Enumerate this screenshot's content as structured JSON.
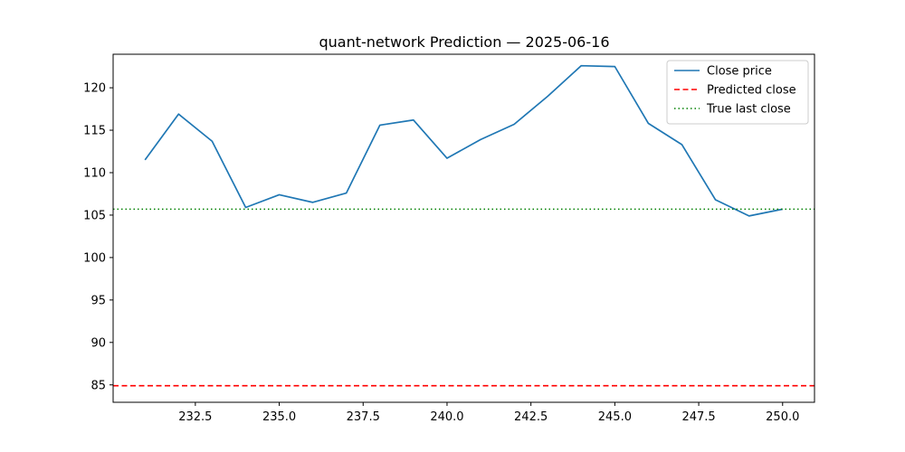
{
  "chart_data": {
    "type": "line",
    "title": "quant-network Prediction — 2025-06-16",
    "xlabel": "",
    "ylabel": "",
    "xlim": [
      230.05,
      250.95
    ],
    "ylim": [
      82.95,
      123.95
    ],
    "x_ticks": [
      232.5,
      235.0,
      237.5,
      240.0,
      242.5,
      245.0,
      247.5,
      250.0
    ],
    "x_tick_labels": [
      "232.5",
      "235.0",
      "237.5",
      "240.0",
      "242.5",
      "245.0",
      "247.5",
      "250.0"
    ],
    "y_ticks": [
      85,
      90,
      95,
      100,
      105,
      110,
      115,
      120
    ],
    "y_tick_labels": [
      "85",
      "90",
      "95",
      "100",
      "105",
      "110",
      "115",
      "120"
    ],
    "grid": false,
    "legend_position": "top-right",
    "series": [
      {
        "name": "Close price",
        "style": "solid",
        "color": "#1f77b4",
        "x": [
          231,
          232,
          233,
          234,
          235,
          236,
          237,
          238,
          239,
          240,
          241,
          242,
          243,
          244,
          245,
          246,
          247,
          248,
          249,
          250
        ],
        "y": [
          111.5,
          116.9,
          113.7,
          105.9,
          107.4,
          106.5,
          107.6,
          115.6,
          116.2,
          111.7,
          113.9,
          115.7,
          119.0,
          122.6,
          122.5,
          115.8,
          113.3,
          106.8,
          104.9,
          105.7
        ]
      },
      {
        "name": "Predicted close",
        "style": "dashed",
        "color": "#ff0000",
        "hline": 84.9
      },
      {
        "name": "True last close",
        "style": "dotted",
        "color": "#008000",
        "hline": 105.7
      }
    ]
  }
}
